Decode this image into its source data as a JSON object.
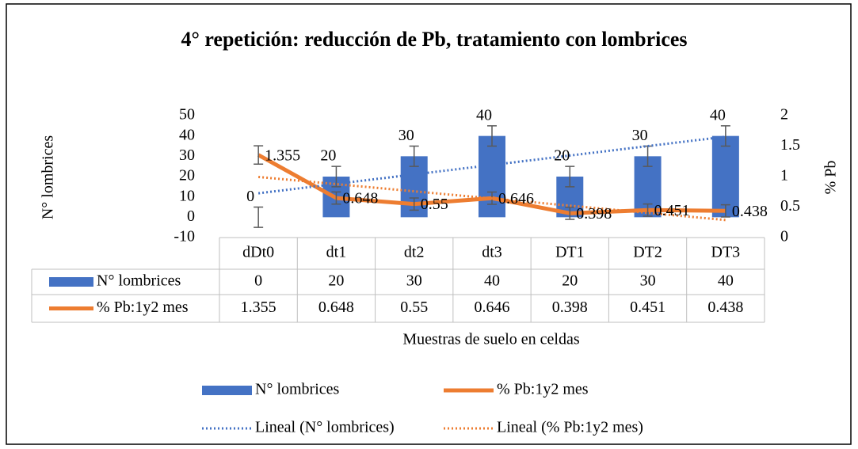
{
  "chart_data": {
    "type": "combo",
    "title": "4° repetición: reducción de Pb, tratamiento con lombrices",
    "x_label": "Muestras de suelo en celdas",
    "y_label": "N° lombrices",
    "y2_label": "% Pb",
    "categories": [
      "dDt0",
      "dt1",
      "dt2",
      "dt3",
      "DT1",
      "DT2",
      "DT3"
    ],
    "series": [
      {
        "name": "N° lombrices",
        "type": "bar",
        "color": "#4472c4",
        "values": [
          0,
          20,
          30,
          40,
          20,
          30,
          40
        ],
        "errors": [
          5,
          5,
          5,
          5,
          5,
          5,
          5
        ],
        "trendline_name": "Lineal (N° lombrices)"
      },
      {
        "name": "% Pb:1y2 mes",
        "type": "line",
        "axis": "y2",
        "color": "#ed7d31",
        "values": [
          1.355,
          0.648,
          0.55,
          0.646,
          0.398,
          0.451,
          0.438
        ],
        "errors": [
          0.15,
          0.1,
          0.1,
          0.1,
          0.1,
          0.1,
          0.1
        ],
        "trendline_name": "Lineal (% Pb:1y2 mes)"
      }
    ],
    "ylim": [
      -10,
      50
    ],
    "yticks": [
      -10,
      0,
      10,
      20,
      30,
      40,
      50
    ],
    "y2lim": [
      0,
      2
    ],
    "y2ticks": [
      0,
      0.5,
      1,
      1.5,
      2
    ],
    "legend": "bottom",
    "data_table": true
  }
}
